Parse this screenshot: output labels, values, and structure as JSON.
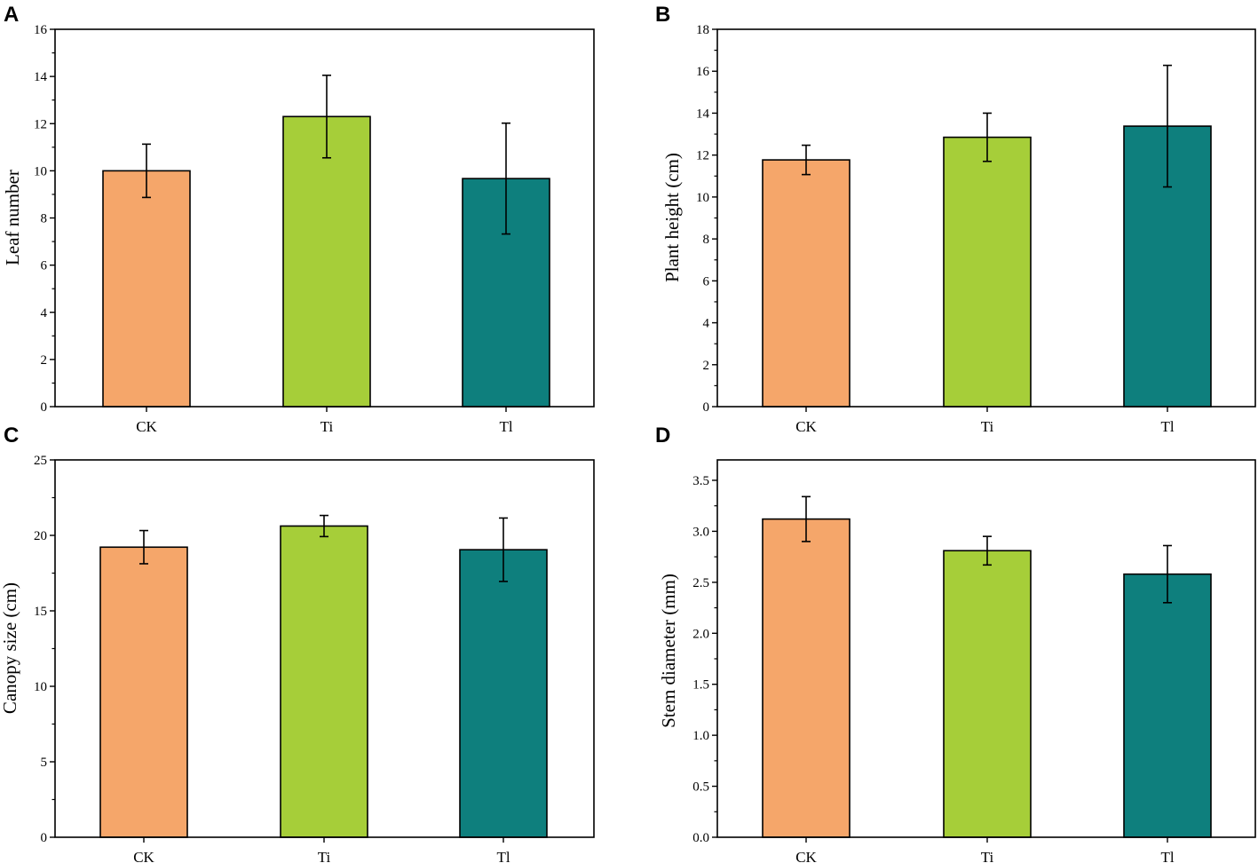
{
  "colors": {
    "CK": "#f5a66a",
    "Ti": "#a6ce39",
    "Tl": "#0e7f7d"
  },
  "chart_data": [
    {
      "id": "A",
      "type": "bar",
      "panel_label": "A",
      "categories": [
        "CK",
        "Ti",
        "Tl"
      ],
      "values": [
        10.0,
        12.3,
        9.67
      ],
      "errors": [
        1.13,
        1.75,
        2.35
      ],
      "ylabel": "Leaf number",
      "xlabel": "",
      "ylim": [
        0,
        16
      ],
      "yticks": [
        0,
        2,
        4,
        6,
        8,
        10,
        12,
        14,
        16
      ],
      "ytick_labels": [
        "0",
        "2",
        "4",
        "6",
        "8",
        "10",
        "12",
        "14",
        "16"
      ]
    },
    {
      "id": "B",
      "type": "bar",
      "panel_label": "B",
      "categories": [
        "CK",
        "Ti",
        "Tl"
      ],
      "values": [
        11.77,
        12.85,
        13.38
      ],
      "errors": [
        0.7,
        1.15,
        2.9
      ],
      "ylabel": "Plant height (cm)",
      "xlabel": "",
      "ylim": [
        0,
        18
      ],
      "yticks": [
        0,
        2,
        4,
        6,
        8,
        10,
        12,
        14,
        16,
        18
      ],
      "ytick_labels": [
        "0",
        "2",
        "4",
        "6",
        "8",
        "10",
        "12",
        "14",
        "16",
        "18"
      ]
    },
    {
      "id": "C",
      "type": "bar",
      "panel_label": "C",
      "categories": [
        "CK",
        "Ti",
        "Tl"
      ],
      "values": [
        19.22,
        20.62,
        19.05
      ],
      "errors": [
        1.1,
        0.7,
        2.1
      ],
      "ylabel": "Canopy size (cm)",
      "xlabel": "",
      "ylim": [
        0,
        25
      ],
      "yticks": [
        0,
        5,
        10,
        15,
        20,
        25
      ],
      "ytick_labels": [
        "0",
        "5",
        "10",
        "15",
        "20",
        "25"
      ]
    },
    {
      "id": "D",
      "type": "bar",
      "panel_label": "D",
      "categories": [
        "CK",
        "Ti",
        "Tl"
      ],
      "values": [
        3.12,
        2.81,
        2.58
      ],
      "errors": [
        0.22,
        0.14,
        0.28
      ],
      "ylabel": "Stem diameter (mm)",
      "xlabel": "",
      "ylim": [
        0,
        3.7
      ],
      "yticks": [
        0.0,
        0.5,
        1.0,
        1.5,
        2.0,
        2.5,
        3.0,
        3.5
      ],
      "ytick_labels": [
        "0.0",
        "0.5",
        "1.0",
        "1.5",
        "2.0",
        "2.5",
        "3.0",
        "3.5"
      ]
    }
  ]
}
